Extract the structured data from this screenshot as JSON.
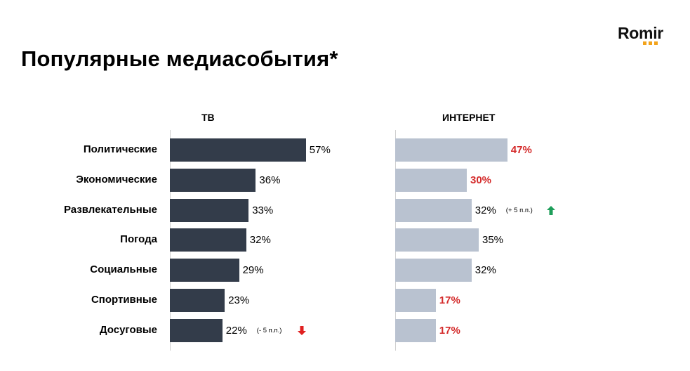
{
  "header": {
    "title": "Популярные медиасобытия*",
    "logo_text": "Romir",
    "logo_dot_color": "#f2a31b"
  },
  "chart_data": [
    {
      "type": "bar",
      "orientation": "horizontal",
      "title": "ТВ",
      "categories": [
        "Политические",
        "Экономические",
        "Развлекательные",
        "Погода",
        "Социальные",
        "Спортивные",
        "Досуговые"
      ],
      "values": [
        57,
        36,
        33,
        32,
        29,
        23,
        22
      ],
      "value_labels": [
        "57%",
        "36%",
        "33%",
        "32%",
        "29%",
        "23%",
        "22%"
      ],
      "bar_color": "#333c4a",
      "annotations": [
        {
          "category": "Досуговые",
          "text": "(- 5 п.п.)",
          "icon": "arrow-down-icon",
          "color": "#e02020"
        }
      ]
    },
    {
      "type": "bar",
      "orientation": "horizontal",
      "title": "ИНТЕРНЕТ",
      "categories": [
        "Политические",
        "Экономические",
        "Развлекательные",
        "Погода",
        "Социальные",
        "Спортивные",
        "Досуговые"
      ],
      "values": [
        47,
        30,
        32,
        35,
        32,
        17,
        17
      ],
      "value_labels": [
        "47%",
        "30%",
        "32%",
        "35%",
        "32%",
        "17%",
        "17%"
      ],
      "highlighted": [
        true,
        true,
        false,
        false,
        false,
        true,
        true
      ],
      "bar_color": "#b9c2d0",
      "highlight_color": "#d42a2a",
      "annotations": [
        {
          "category": "Развлекательные",
          "text": "(+ 5 п.п.)",
          "icon": "arrow-up-icon",
          "color": "#1e9e5a"
        }
      ]
    }
  ]
}
